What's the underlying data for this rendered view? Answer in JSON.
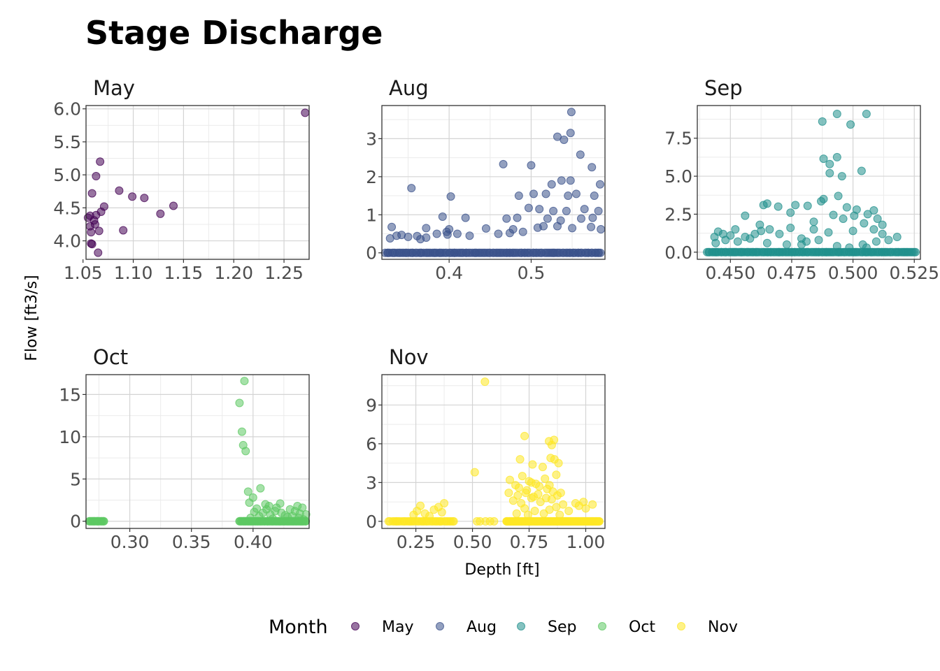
{
  "chart_data": {
    "type": "scatter",
    "title": "Stage Discharge",
    "xlabel": "Depth [ft]",
    "ylabel": "Flow [ft3/s]",
    "legend": {
      "title": "Month",
      "position": "bottom",
      "entries": [
        {
          "name": "May",
          "color": "#440154"
        },
        {
          "name": "Aug",
          "color": "#3B528B"
        },
        {
          "name": "Sep",
          "color": "#21908C"
        },
        {
          "name": "Oct",
          "color": "#5DC863"
        },
        {
          "name": "Nov",
          "color": "#FDE725"
        }
      ]
    },
    "grid": true,
    "panels": [
      {
        "name": "May",
        "color": "#440154",
        "xlim": [
          1.053,
          1.275
        ],
        "ylim": [
          3.72,
          6.05
        ],
        "xticks": [
          1.05,
          1.1,
          1.15,
          1.2,
          1.25
        ],
        "xtick_labels": [
          "1.05",
          "1.10",
          "1.15",
          "1.20",
          "1.25"
        ],
        "yticks": [
          4.0,
          4.5,
          5.0,
          5.5,
          6.0
        ],
        "ytick_labels": [
          "4.0",
          "4.5",
          "5.0",
          "5.5",
          "6.0"
        ],
        "points": [
          [
            1.271,
            5.94
          ],
          [
            1.067,
            5.2
          ],
          [
            1.063,
            4.98
          ],
          [
            1.059,
            4.72
          ],
          [
            1.086,
            4.76
          ],
          [
            1.099,
            4.67
          ],
          [
            1.111,
            4.65
          ],
          [
            1.14,
            4.53
          ],
          [
            1.127,
            4.41
          ],
          [
            1.071,
            4.52
          ],
          [
            1.068,
            4.44
          ],
          [
            1.063,
            4.39
          ],
          [
            1.057,
            4.38
          ],
          [
            1.055,
            4.35
          ],
          [
            1.061,
            4.31
          ],
          [
            1.057,
            4.22
          ],
          [
            1.062,
            4.25
          ],
          [
            1.066,
            4.15
          ],
          [
            1.09,
            4.16
          ],
          [
            1.058,
            4.13
          ],
          [
            1.058,
            3.96
          ],
          [
            1.059,
            3.95
          ],
          [
            1.065,
            3.82
          ]
        ]
      },
      {
        "name": "Aug",
        "color": "#3B528B",
        "xlim": [
          0.318,
          0.59
        ],
        "ylim": [
          -0.17,
          3.87
        ],
        "xticks": [
          0.4,
          0.5
        ],
        "xtick_labels": [
          "0.4",
          "0.5"
        ],
        "yticks": [
          0,
          1,
          2,
          3
        ],
        "ytick_labels": [
          "0",
          "1",
          "2",
          "3"
        ],
        "points": [
          [
            0.549,
            3.7
          ],
          [
            0.548,
            3.15
          ],
          [
            0.532,
            3.05
          ],
          [
            0.54,
            2.97
          ],
          [
            0.56,
            2.58
          ],
          [
            0.466,
            2.33
          ],
          [
            0.5,
            2.3
          ],
          [
            0.574,
            2.25
          ],
          [
            0.354,
            1.7
          ],
          [
            0.548,
            1.9
          ],
          [
            0.537,
            1.9
          ],
          [
            0.525,
            1.8
          ],
          [
            0.584,
            1.8
          ],
          [
            0.402,
            1.48
          ],
          [
            0.485,
            1.5
          ],
          [
            0.503,
            1.55
          ],
          [
            0.518,
            1.55
          ],
          [
            0.545,
            1.5
          ],
          [
            0.555,
            1.55
          ],
          [
            0.577,
            1.5
          ],
          [
            0.497,
            1.18
          ],
          [
            0.51,
            1.15
          ],
          [
            0.527,
            1.1
          ],
          [
            0.543,
            1.1
          ],
          [
            0.565,
            1.15
          ],
          [
            0.582,
            1.1
          ],
          [
            0.392,
            0.95
          ],
          [
            0.42,
            0.92
          ],
          [
            0.47,
            0.9
          ],
          [
            0.483,
            0.92
          ],
          [
            0.52,
            0.9
          ],
          [
            0.536,
            0.85
          ],
          [
            0.561,
            0.9
          ],
          [
            0.575,
            0.92
          ],
          [
            0.33,
            0.68
          ],
          [
            0.372,
            0.65
          ],
          [
            0.4,
            0.62
          ],
          [
            0.397,
            0.55
          ],
          [
            0.445,
            0.64
          ],
          [
            0.478,
            0.62
          ],
          [
            0.508,
            0.66
          ],
          [
            0.515,
            0.7
          ],
          [
            0.532,
            0.7
          ],
          [
            0.55,
            0.65
          ],
          [
            0.573,
            0.68
          ],
          [
            0.585,
            0.62
          ],
          [
            0.336,
            0.45
          ],
          [
            0.35,
            0.42
          ],
          [
            0.361,
            0.44
          ],
          [
            0.372,
            0.4
          ],
          [
            0.385,
            0.5
          ],
          [
            0.398,
            0.48
          ],
          [
            0.41,
            0.5
          ],
          [
            0.425,
            0.45
          ],
          [
            0.46,
            0.5
          ],
          [
            0.474,
            0.52
          ],
          [
            0.49,
            0.55
          ],
          [
            0.342,
            0.47
          ],
          [
            0.365,
            0.36
          ],
          [
            0.328,
            0.38
          ]
        ],
        "zero_range": [
          0.322,
          0.585
        ],
        "zero_count": 130
      },
      {
        "name": "Sep",
        "color": "#21908C",
        "xlim": [
          0.4365,
          0.5275
        ],
        "ylim": [
          -0.47,
          9.65
        ],
        "xticks": [
          0.45,
          0.475,
          0.5,
          0.525
        ],
        "xtick_labels": [
          "0.450",
          "0.475",
          "0.500",
          "0.525"
        ],
        "yticks": [
          0,
          2.5,
          5.0,
          7.5
        ],
        "ytick_labels": [
          "0.0",
          "2.5",
          "5.0",
          "7.5"
        ],
        "points": [
          [
            0.4935,
            9.1
          ],
          [
            0.5055,
            9.1
          ],
          [
            0.4875,
            8.6
          ],
          [
            0.499,
            8.4
          ],
          [
            0.488,
            6.15
          ],
          [
            0.4905,
            5.8
          ],
          [
            0.4935,
            6.25
          ],
          [
            0.4905,
            5.2
          ],
          [
            0.4955,
            5.0
          ],
          [
            0.5035,
            5.35
          ],
          [
            0.4695,
            3.0
          ],
          [
            0.4635,
            3.1
          ],
          [
            0.465,
            3.2
          ],
          [
            0.4765,
            3.1
          ],
          [
            0.4815,
            3.05
          ],
          [
            0.487,
            3.35
          ],
          [
            0.488,
            3.5
          ],
          [
            0.494,
            3.7
          ],
          [
            0.4975,
            2.95
          ],
          [
            0.5015,
            2.8
          ],
          [
            0.506,
            2.5
          ],
          [
            0.5085,
            2.75
          ],
          [
            0.456,
            2.4
          ],
          [
            0.462,
            1.8
          ],
          [
            0.4745,
            2.6
          ],
          [
            0.484,
            2.0
          ],
          [
            0.492,
            2.45
          ],
          [
            0.496,
            2.2
          ],
          [
            0.5005,
            2.4
          ],
          [
            0.5045,
            1.9
          ],
          [
            0.51,
            2.2
          ],
          [
            0.512,
            1.8
          ],
          [
            0.4435,
            1.0
          ],
          [
            0.445,
            1.35
          ],
          [
            0.447,
            1.2
          ],
          [
            0.45,
            1.1
          ],
          [
            0.452,
            1.5
          ],
          [
            0.456,
            1.0
          ],
          [
            0.46,
            1.2
          ],
          [
            0.4625,
            1.4
          ],
          [
            0.466,
            1.5
          ],
          [
            0.47,
            1.2
          ],
          [
            0.4745,
            1.6
          ],
          [
            0.479,
            0.9
          ],
          [
            0.484,
            1.5
          ],
          [
            0.49,
            1.3
          ],
          [
            0.5,
            1.4
          ],
          [
            0.5085,
            1.5
          ],
          [
            0.512,
            1.2
          ],
          [
            0.518,
            1.0
          ],
          [
            0.444,
            0.6
          ],
          [
            0.448,
            0.8
          ],
          [
            0.453,
            0.7
          ],
          [
            0.458,
            0.9
          ],
          [
            0.465,
            0.6
          ],
          [
            0.473,
            0.5
          ],
          [
            0.481,
            0.7
          ],
          [
            0.486,
            0.8
          ],
          [
            0.504,
            0.5
          ],
          [
            0.5095,
            0.7
          ],
          [
            0.5145,
            0.8
          ],
          [
            0.4935,
            0.4
          ],
          [
            0.4985,
            0.3
          ],
          [
            0.479,
            0.5
          ],
          [
            0.5055,
            0.3
          ]
        ],
        "zero_range": [
          0.4405,
          0.5255
        ],
        "zero_count": 140
      },
      {
        "name": "Oct",
        "color": "#5DC863",
        "xlim": [
          0.2645,
          0.4455
        ],
        "ylim": [
          -0.85,
          17.35
        ],
        "xticks": [
          0.3,
          0.35,
          0.4
        ],
        "xtick_labels": [
          "0.30",
          "0.35",
          "0.40"
        ],
        "yticks": [
          0,
          5,
          10,
          15
        ],
        "ytick_labels": [
          "0",
          "5",
          "10",
          "15"
        ],
        "points": [
          [
            0.393,
            16.6
          ],
          [
            0.389,
            14.0
          ],
          [
            0.391,
            10.6
          ],
          [
            0.392,
            9.0
          ],
          [
            0.394,
            8.3
          ],
          [
            0.396,
            3.5
          ],
          [
            0.4,
            2.8
          ],
          [
            0.406,
            3.9
          ],
          [
            0.41,
            2.0
          ],
          [
            0.403,
            1.5
          ],
          [
            0.413,
            1.8
          ],
          [
            0.418,
            1.2
          ],
          [
            0.423,
            1.0
          ],
          [
            0.43,
            1.4
          ],
          [
            0.436,
            1.8
          ],
          [
            0.44,
            1.6
          ],
          [
            0.397,
            2.2
          ],
          [
            0.408,
            1.0
          ],
          [
            0.414,
            0.8
          ],
          [
            0.426,
            0.7
          ],
          [
            0.432,
            0.6
          ],
          [
            0.438,
            0.9
          ],
          [
            0.401,
            1.1
          ],
          [
            0.419,
            1.6
          ],
          [
            0.428,
            0.5
          ],
          [
            0.434,
            1.2
          ],
          [
            0.443,
            0.8
          ],
          [
            0.405,
            0.6
          ],
          [
            0.411,
            1.4
          ],
          [
            0.422,
            2.1
          ],
          [
            0.398,
            0.4
          ],
          [
            0.416,
            0.3
          ],
          [
            0.437,
            0.4
          ],
          [
            0.441,
            0.2
          ]
        ],
        "zero_ranges": [
          [
            0.267,
            0.279,
            18
          ],
          [
            0.389,
            0.443,
            90
          ]
        ]
      },
      {
        "name": "Nov",
        "color": "#FDE725",
        "xlim": [
          0.1,
          1.085
        ],
        "ylim": [
          -0.55,
          11.35
        ],
        "xticks": [
          0.25,
          0.5,
          0.75,
          1.0
        ],
        "xtick_labels": [
          "0.25",
          "0.50",
          "0.75",
          "1.00"
        ],
        "yticks": [
          0,
          3,
          6,
          9
        ],
        "ytick_labels": [
          "0",
          "3",
          "6",
          "9"
        ],
        "points": [
          [
            0.555,
            10.8
          ],
          [
            0.73,
            6.6
          ],
          [
            0.838,
            6.2
          ],
          [
            0.86,
            6.3
          ],
          [
            0.85,
            5.9
          ],
          [
            0.71,
            4.8
          ],
          [
            0.845,
            4.9
          ],
          [
            0.862,
            4.8
          ],
          [
            0.51,
            3.8
          ],
          [
            0.765,
            4.4
          ],
          [
            0.81,
            4.2
          ],
          [
            0.88,
            4.5
          ],
          [
            0.665,
            3.2
          ],
          [
            0.69,
            2.8
          ],
          [
            0.72,
            3.5
          ],
          [
            0.75,
            3.1
          ],
          [
            0.78,
            2.9
          ],
          [
            0.82,
            3.3
          ],
          [
            0.87,
            3.6
          ],
          [
            0.66,
            2.2
          ],
          [
            0.7,
            2.0
          ],
          [
            0.74,
            2.4
          ],
          [
            0.79,
            2.1
          ],
          [
            0.83,
            2.5
          ],
          [
            0.89,
            2.2
          ],
          [
            0.68,
            1.6
          ],
          [
            0.715,
            1.4
          ],
          [
            0.76,
            1.8
          ],
          [
            0.8,
            1.5
          ],
          [
            0.85,
            1.7
          ],
          [
            0.9,
            1.3
          ],
          [
            0.955,
            1.4
          ],
          [
            0.99,
            1.5
          ],
          [
            1.03,
            1.3
          ],
          [
            0.97,
            1.2
          ],
          [
            0.27,
            1.2
          ],
          [
            0.255,
            0.8
          ],
          [
            0.29,
            0.6
          ],
          [
            0.33,
            0.9
          ],
          [
            0.35,
            1.1
          ],
          [
            0.375,
            1.4
          ],
          [
            0.31,
            0.4
          ],
          [
            0.24,
            0.5
          ],
          [
            0.365,
            0.7
          ],
          [
            0.73,
            1.0
          ],
          [
            0.775,
            0.8
          ],
          [
            0.84,
            0.9
          ],
          [
            0.87,
            1.1
          ],
          [
            0.925,
            0.8
          ],
          [
            1.0,
            1.0
          ],
          [
            0.695,
            0.6
          ],
          [
            0.745,
            0.5
          ],
          [
            0.815,
            0.6
          ],
          [
            0.885,
            0.5
          ],
          [
            0.705,
            2.6
          ],
          [
            0.735,
            2.2
          ],
          [
            0.77,
            1.9
          ],
          [
            0.795,
            2.7
          ],
          [
            0.825,
            1.8
          ],
          [
            0.855,
            2.3
          ],
          [
            0.875,
            2.0
          ],
          [
            0.76,
            3.0
          ],
          [
            0.84,
            2.8
          ]
        ],
        "zero_ranges": [
          [
            0.13,
            0.42,
            40
          ],
          [
            0.52,
            0.6,
            5
          ],
          [
            0.65,
            1.06,
            150
          ]
        ]
      }
    ]
  }
}
